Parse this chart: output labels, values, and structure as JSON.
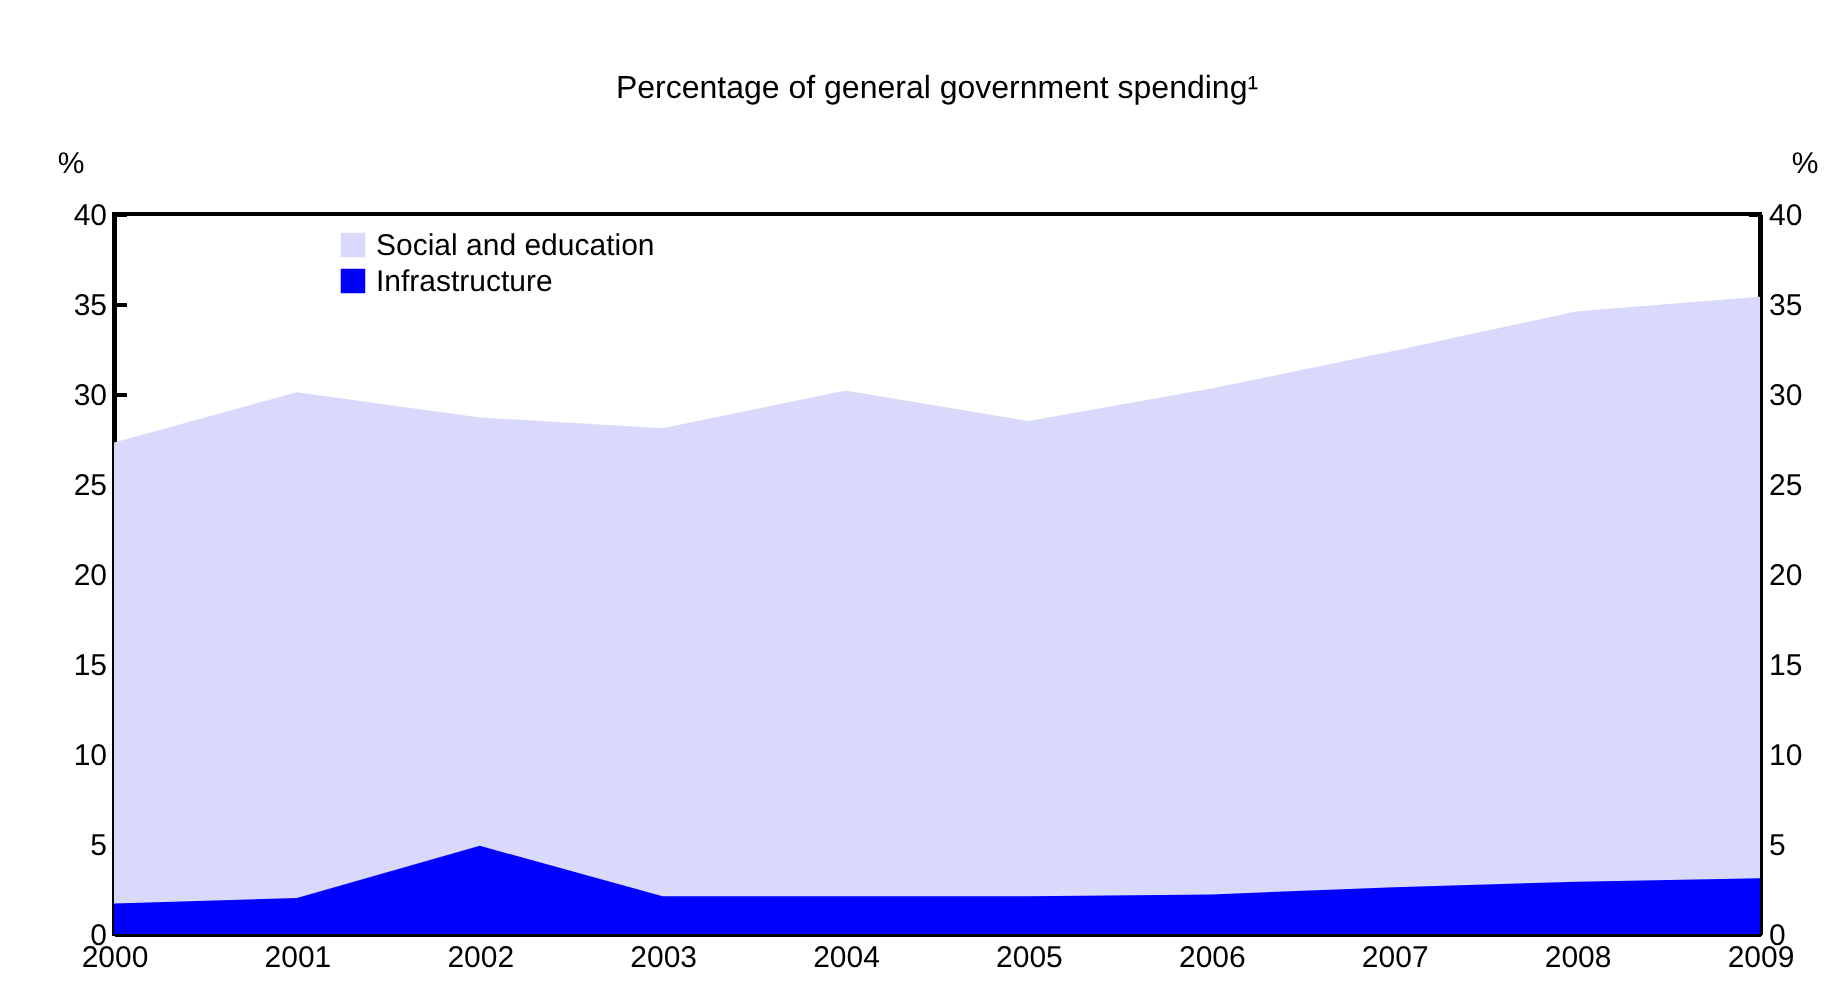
{
  "chart_data": {
    "type": "area",
    "title": "Percentage of general government spending¹",
    "x": [
      2000,
      2001,
      2002,
      2003,
      2004,
      2005,
      2006,
      2007,
      2008,
      2009
    ],
    "series": [
      {
        "name": "Social and education",
        "color": "#d9d9fb",
        "values": [
          27.3,
          30.1,
          28.7,
          28.1,
          30.2,
          28.5,
          30.3,
          32.4,
          34.6,
          35.4
        ]
      },
      {
        "name": "Infrastructure",
        "color": "#0000ff",
        "values": [
          1.7,
          2.0,
          4.9,
          2.1,
          2.1,
          2.1,
          2.2,
          2.6,
          2.9,
          3.1
        ]
      }
    ],
    "xlim": [
      2000,
      2009
    ],
    "xticks": [
      2000,
      2001,
      2002,
      2003,
      2004,
      2005,
      2006,
      2007,
      2008,
      2009
    ],
    "ylim": [
      0,
      40
    ],
    "yticks": [
      0,
      5,
      10,
      15,
      20,
      25,
      30,
      35,
      40
    ],
    "ylabel": "%",
    "y2lim": [
      0,
      40
    ],
    "y2ticks": [
      0,
      5,
      10,
      15,
      20,
      25,
      30,
      35,
      40
    ],
    "y2label": "%",
    "legend": "top left"
  }
}
